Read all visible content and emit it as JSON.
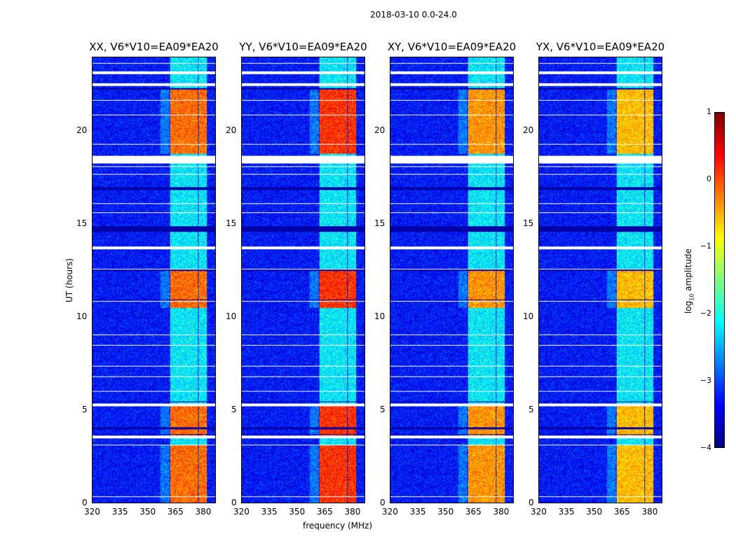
{
  "suptitle": "2018-03-10 0.0-24.0",
  "chart_data": {
    "type": "heatmap",
    "title": "2018-03-10 0.0-24.0",
    "xlabel": "frequency (MHz)",
    "ylabel": "UT (hours)",
    "xlim": [
      320,
      387
    ],
    "ylim": [
      0,
      24
    ],
    "xticks": [
      "320",
      "335",
      "350",
      "365",
      "380"
    ],
    "yticks": [
      "0",
      "5",
      "10",
      "15",
      "20"
    ],
    "colormap": "jet",
    "clim": [
      -4,
      1
    ],
    "colorbar": {
      "label": "log10 amplitude",
      "label_main": "log",
      "label_sub": "10",
      "label_rest": " amplitude",
      "ticks": [
        "1",
        "0",
        "−1",
        "−2",
        "−3",
        "−4"
      ]
    },
    "panels": [
      {
        "title": "XX, V6*V10=EA09*EA20",
        "strong_level": 0.0
      },
      {
        "title": "YY, V6*V10=EA09*EA20",
        "strong_level": 0.3
      },
      {
        "title": "XY, V6*V10=EA09*EA20",
        "strong_level": -0.2
      },
      {
        "title": "YX, V6*V10=EA09*EA20",
        "strong_level": -0.4
      }
    ],
    "background_level": -3.3,
    "rfi_bands_mhz": [
      [
        362.3,
        367.2
      ],
      [
        367.5,
        372.5
      ],
      [
        372.8,
        377.4
      ],
      [
        378.1,
        382.6
      ]
    ],
    "active_periods_hours": [
      [
        0,
        3.1
      ],
      [
        3.6,
        5.2
      ],
      [
        10.5,
        12.6
      ],
      [
        18.8,
        22.3
      ]
    ],
    "flagged_hours": [
      [
        23.1,
        23.25
      ],
      [
        22.45,
        22.6
      ],
      [
        18.3,
        18.7
      ],
      [
        18.08,
        18.12
      ],
      [
        17.68,
        17.72
      ],
      [
        20.88,
        20.92
      ],
      [
        21.68,
        21.72
      ],
      [
        19.28,
        19.32
      ],
      [
        13.65,
        13.8
      ],
      [
        12.58,
        12.62
      ],
      [
        10.83,
        10.87
      ],
      [
        9.03,
        9.07
      ],
      [
        8.48,
        8.52
      ],
      [
        7.33,
        7.37
      ],
      [
        6.78,
        6.82
      ],
      [
        5.98,
        6.02
      ],
      [
        5.2,
        5.35
      ],
      [
        3.45,
        3.6
      ],
      [
        3.08,
        3.12
      ],
      [
        15.6,
        15.64
      ],
      [
        16.1,
        16.14
      ],
      [
        0.3,
        0.34
      ],
      [
        23.65,
        23.7
      ]
    ],
    "dark_hours": [
      [
        22.28,
        22.34
      ],
      [
        16.85,
        17.0
      ],
      [
        14.6,
        14.9
      ],
      [
        12.5,
        12.55
      ],
      [
        10.9,
        10.95
      ],
      [
        5.4,
        5.45
      ],
      [
        3.95,
        4.05
      ],
      [
        3.65,
        3.7
      ]
    ]
  }
}
